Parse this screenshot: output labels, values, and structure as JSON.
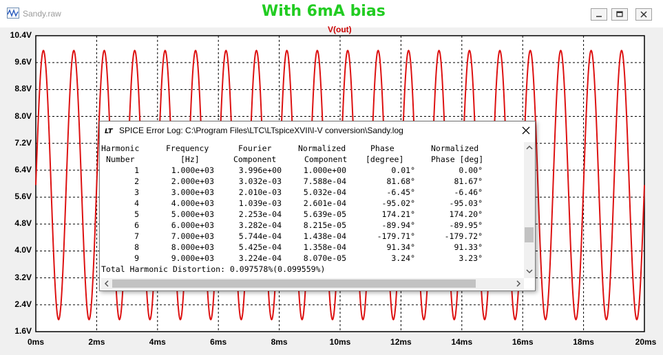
{
  "window": {
    "title": "Sandy.raw",
    "overlay_title": "With 6mA bias"
  },
  "colors": {
    "trace": "#dd1111",
    "overlay": "#22cc22",
    "label": "#cc0000"
  },
  "chart_data": {
    "type": "line",
    "title": "",
    "series": [
      {
        "name": "V(out)",
        "frequency_hz": 1000,
        "center": 5.96,
        "amplitude": 4.0,
        "phase_deg": 0
      }
    ],
    "xlim": [
      0,
      20
    ],
    "ylim": [
      1.6,
      10.4
    ],
    "x_ticks": [
      "0ms",
      "2ms",
      "4ms",
      "6ms",
      "8ms",
      "10ms",
      "12ms",
      "14ms",
      "16ms",
      "18ms",
      "20ms"
    ],
    "y_ticks": [
      "10.4V",
      "9.6V",
      "8.8V",
      "8.0V",
      "7.2V",
      "6.4V",
      "5.6V",
      "4.8V",
      "4.0V",
      "3.2V",
      "2.4V",
      "1.6V"
    ],
    "grid": true
  },
  "dialog": {
    "title": "SPICE Error Log: C:\\Program Files\\LTC\\LTspiceXVII\\I-V conversion\\Sandy.log",
    "headers1": [
      "Harmonic",
      "Frequency",
      "Fourier",
      "Normalized",
      "Phase",
      "Normalized"
    ],
    "headers2": [
      "Number",
      "[Hz]",
      "Component",
      "Component",
      "[degree]",
      "Phase [deg]"
    ],
    "rows": [
      [
        "1",
        "1.000e+03",
        "3.996e+00",
        "1.000e+00",
        "0.01°",
        "0.00°"
      ],
      [
        "2",
        "2.000e+03",
        "3.032e-03",
        "7.588e-04",
        "81.68°",
        "81.67°"
      ],
      [
        "3",
        "3.000e+03",
        "2.010e-03",
        "5.032e-04",
        "-6.45°",
        "-6.46°"
      ],
      [
        "4",
        "4.000e+03",
        "1.039e-03",
        "2.601e-04",
        "-95.02°",
        "-95.03°"
      ],
      [
        "5",
        "5.000e+03",
        "2.253e-04",
        "5.639e-05",
        "174.21°",
        "174.20°"
      ],
      [
        "6",
        "6.000e+03",
        "3.282e-04",
        "8.215e-05",
        "-89.94°",
        "-89.95°"
      ],
      [
        "7",
        "7.000e+03",
        "5.744e-04",
        "1.438e-04",
        "-179.71°",
        "-179.72°"
      ],
      [
        "8",
        "8.000e+03",
        "5.425e-04",
        "1.358e-04",
        "91.34°",
        "91.33°"
      ],
      [
        "9",
        "9.000e+03",
        "3.224e-04",
        "8.070e-05",
        "3.24°",
        "3.23°"
      ]
    ],
    "thd": "Total Harmonic Distortion: 0.097578%(0.099559%)"
  }
}
